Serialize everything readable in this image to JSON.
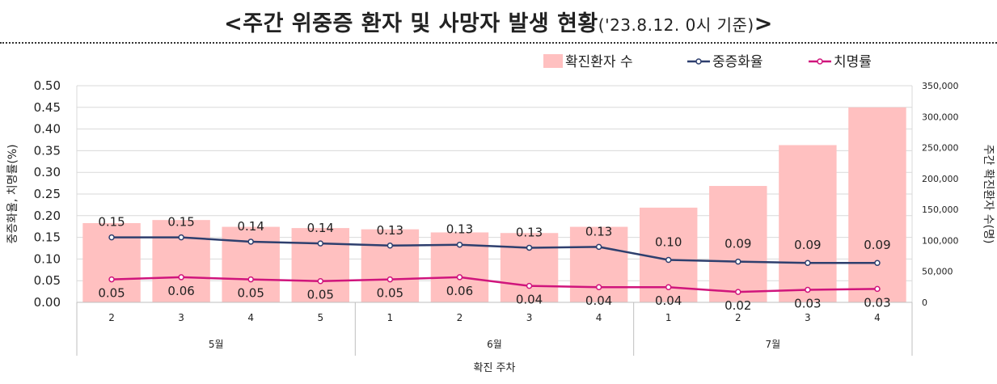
{
  "title": {
    "main": "<주간 위중증 환자 및 사망자 발생 현황",
    "sub": "('23.8.12. 0시 기준)",
    "close": ">"
  },
  "colors": {
    "bar": "#ffc0c0",
    "severe_line": "#2e3f6e",
    "fatality_line": "#d0157c",
    "grid": "#d9d9d9"
  },
  "chart_data": {
    "type": "bar",
    "xlabel": "확진 주차",
    "ylabel_left": "중증화율, 치명률(%)",
    "ylabel_right": "주간 확진환자 수(명)",
    "ylim_left": [
      0,
      0.5
    ],
    "yticks_left": [
      "0.00",
      "0.05",
      "0.10",
      "0.15",
      "0.20",
      "0.25",
      "0.30",
      "0.35",
      "0.40",
      "0.45",
      "0.50"
    ],
    "ylim_right": [
      0,
      350000
    ],
    "yticks_right": [
      "0",
      "50,000",
      "100,000",
      "150,000",
      "200,000",
      "250,000",
      "300,000",
      "350,000"
    ],
    "categories": [
      "2",
      "3",
      "4",
      "5",
      "1",
      "2",
      "3",
      "4",
      "1",
      "2",
      "3",
      "4"
    ],
    "month_groups": [
      {
        "label": "5월",
        "count": 4
      },
      {
        "label": "6월",
        "count": 4
      },
      {
        "label": "7월",
        "count": 4
      }
    ],
    "legend": [
      "확진환자 수",
      "중증화율",
      "치명률"
    ],
    "legend_position": "top-right",
    "grid": true,
    "series": [
      {
        "name": "확진환자 수",
        "type": "bar",
        "axis": "right",
        "values": [
          128000,
          133000,
          122000,
          120000,
          118000,
          113000,
          112000,
          122000,
          153000,
          188000,
          254000,
          315000
        ]
      },
      {
        "name": "중증화율",
        "type": "line",
        "axis": "left",
        "values": [
          0.15,
          0.15,
          0.14,
          0.136,
          0.131,
          0.133,
          0.126,
          0.128,
          0.098,
          0.094,
          0.091,
          0.091
        ],
        "labels": [
          "0.15",
          "0.15",
          "0.14",
          "0.14",
          "0.13",
          "0.13",
          "0.13",
          "0.13",
          "0.10",
          "0.09",
          "0.09",
          "0.09"
        ]
      },
      {
        "name": "치명률",
        "type": "line",
        "axis": "left",
        "values": [
          0.053,
          0.058,
          0.053,
          0.049,
          0.053,
          0.058,
          0.038,
          0.035,
          0.035,
          0.024,
          0.029,
          0.031
        ],
        "labels": [
          "0.05",
          "0.06",
          "0.05",
          "0.05",
          "0.05",
          "0.06",
          "0.04",
          "0.04",
          "0.04",
          "0.02",
          "0.03",
          "0.03"
        ]
      }
    ]
  }
}
